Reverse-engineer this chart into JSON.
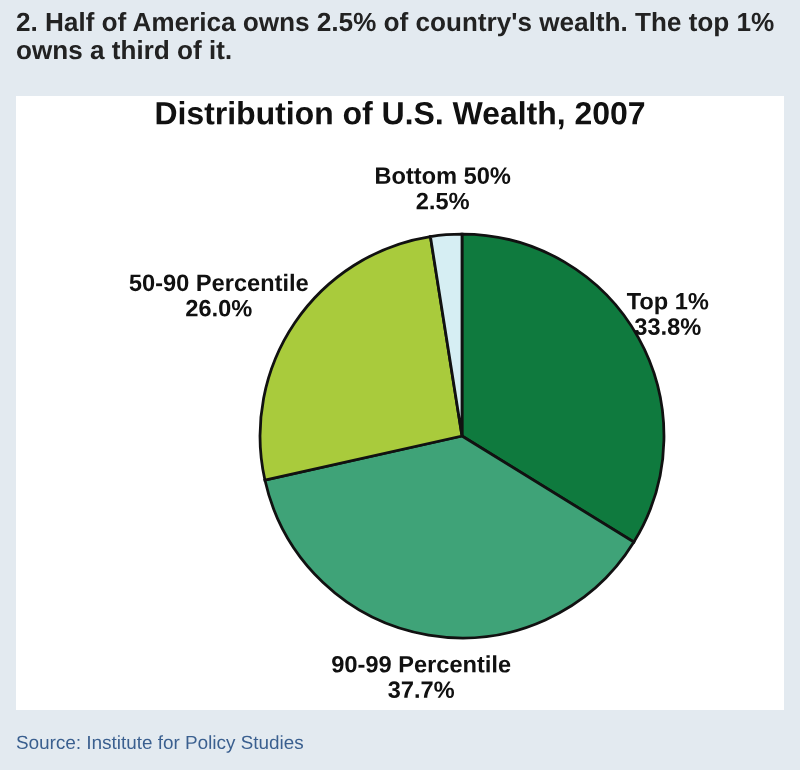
{
  "chart_data": {
    "type": "pie",
    "title": "Distribution of U.S. Wealth, 2007",
    "subtitle": "2. Half of America owns 2.5% of country's wealth. The top 1% owns a third of it.",
    "categories": [
      "Top 1%",
      "90-99 Percentile",
      "50-90 Percentile",
      "Bottom 50%"
    ],
    "values": [
      33.8,
      37.7,
      26.0,
      2.5
    ],
    "value_labels": [
      "33.8%",
      "37.7%",
      "26.0%",
      "2.5%"
    ],
    "colors": [
      "#0f7a3e",
      "#3fa378",
      "#a9cb3c",
      "#d6eef3"
    ],
    "annotations": [
      "Source: Institute for Policy Studies"
    ]
  }
}
